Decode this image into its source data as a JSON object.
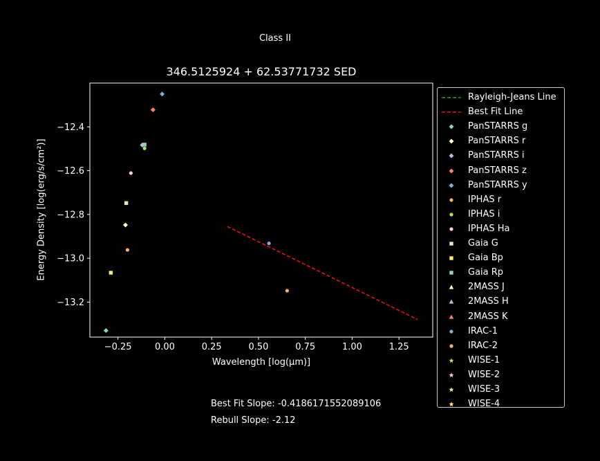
{
  "figure": {
    "suptitle": "Class II",
    "footer": {
      "best_fit": "Best Fit Slope: -0.4186171552089106",
      "rebull": "Rebull Slope: -2.12"
    }
  },
  "chart_data": {
    "type": "scatter",
    "title": "346.5125924 + 62.53771732 SED",
    "xlabel": "Wavelength [log(μm)]",
    "ylabel": "Energy Density [log(erg/s/cm²)]",
    "xlim": [
      -0.4,
      1.43
    ],
    "ylim": [
      -13.36,
      -12.2
    ],
    "xticks": [
      -0.25,
      0.0,
      0.25,
      0.5,
      0.75,
      1.0,
      1.25
    ],
    "xtick_labels": [
      "−0.25",
      "0.00",
      "0.25",
      "0.50",
      "0.75",
      "1.00",
      "1.25"
    ],
    "yticks": [
      -12.4,
      -12.6,
      -12.8,
      -13.0,
      -13.2
    ],
    "ytick_labels": [
      "−12.4",
      "−12.6",
      "−12.8",
      "−13.0",
      "−13.2"
    ],
    "legend_position": "outside right",
    "lines": [
      {
        "name": "Rayleigh-Jeans Line",
        "color": "#22a022",
        "style": "dashed",
        "x": [],
        "y": []
      },
      {
        "name": "Best Fit Line",
        "color": "#e8101b",
        "style": "dashed",
        "x": [
          0.334,
          1.35
        ],
        "y": [
          -12.855,
          -13.28
        ]
      }
    ],
    "series": [
      {
        "name": "PanSTARRS g",
        "marker": "diamond",
        "color": "#8dd3c7",
        "x": [
          -0.314
        ],
        "y": [
          -13.33
        ]
      },
      {
        "name": "PanSTARRS r",
        "marker": "diamond",
        "color": "#ffffb3",
        "x": [
          -0.21
        ],
        "y": [
          -12.848
        ]
      },
      {
        "name": "PanSTARRS i",
        "marker": "diamond",
        "color": "#bebada",
        "x": [
          -0.12
        ],
        "y": [
          -12.483
        ]
      },
      {
        "name": "PanSTARRS z",
        "marker": "diamond",
        "color": "#fb8072",
        "x": [
          -0.063
        ],
        "y": [
          -12.322
        ]
      },
      {
        "name": "PanSTARRS y",
        "marker": "diamond",
        "color": "#80b1d3",
        "x": [
          -0.014
        ],
        "y": [
          -12.25
        ]
      },
      {
        "name": "IPHAS r",
        "marker": "circle",
        "color": "#fdb462",
        "x": [
          -0.199
        ],
        "y": [
          -12.962
        ]
      },
      {
        "name": "IPHAS i",
        "marker": "circle",
        "color": "#b3de69",
        "x": [
          -0.108
        ],
        "y": [
          -12.498
        ]
      },
      {
        "name": "IPHAS Ha",
        "marker": "circle",
        "color": "#fccde5",
        "x": [
          -0.181
        ],
        "y": [
          -12.611
        ]
      },
      {
        "name": "Gaia G",
        "marker": "square",
        "color": "#d9f0b3",
        "x": [
          -0.206
        ],
        "y": [
          -12.748
        ]
      },
      {
        "name": "Gaia Bp",
        "marker": "square",
        "color": "#ffed6f",
        "x": [
          -0.288
        ],
        "y": [
          -13.066
        ]
      },
      {
        "name": "Gaia Rp",
        "marker": "square",
        "color": "#8dd3c7",
        "x": [
          -0.108
        ],
        "y": [
          -12.481
        ]
      },
      {
        "name": "2MASS J",
        "marker": "triangle",
        "color": "#ffffb3",
        "x": [],
        "y": []
      },
      {
        "name": "2MASS H",
        "marker": "triangle",
        "color": "#bebada",
        "x": [],
        "y": []
      },
      {
        "name": "2MASS K",
        "marker": "triangle",
        "color": "#fb8072",
        "x": [],
        "y": []
      },
      {
        "name": "IRAC-1",
        "marker": "circle",
        "color": "#80b1d3",
        "x": [
          0.556
        ],
        "y": [
          -12.932
        ]
      },
      {
        "name": "IRAC-2",
        "marker": "circle",
        "color": "#fdb462",
        "x": [
          0.653
        ],
        "y": [
          -13.148
        ]
      },
      {
        "name": "WISE-1",
        "marker": "star",
        "color": "#b3de69",
        "x": [],
        "y": []
      },
      {
        "name": "WISE-2",
        "marker": "star",
        "color": "#fccde5",
        "x": [],
        "y": []
      },
      {
        "name": "WISE-3",
        "marker": "star",
        "color": "#d9f0b3",
        "x": [],
        "y": []
      },
      {
        "name": "WISE-4",
        "marker": "star",
        "color": "#ffed6f",
        "x": [],
        "y": []
      }
    ]
  }
}
